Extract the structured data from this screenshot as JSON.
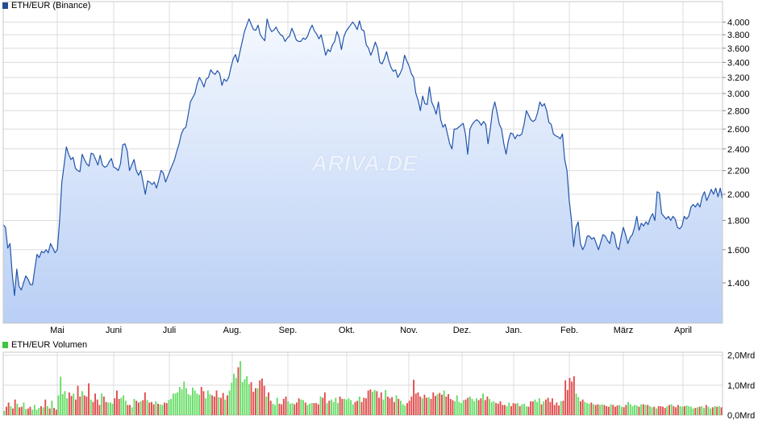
{
  "legend_price": "ETH/EUR (Binance)",
  "legend_volume": "ETH/EUR Volumen",
  "watermark": "ARIVA.DE",
  "colors": {
    "line": "#2255aa",
    "fill_top": "#f4f8fe",
    "fill_bottom": "#b9cff5",
    "grid": "#dcdcdc",
    "price_swatch": "#254d94",
    "volume_swatch": "#3ec63e",
    "vol_up": "#66dd66",
    "vol_down": "#e04c4c"
  },
  "chart_data": [
    {
      "type": "line",
      "title": "ETH/EUR (Binance)",
      "x_ticks": [
        "Mai",
        "Juni",
        "Juli",
        "Aug.",
        "Sep.",
        "Okt.",
        "Nov.",
        "Dez.",
        "Jan.",
        "Feb.",
        "März",
        "April"
      ],
      "y_ticks": [
        "1.400",
        "1.600",
        "1.800",
        "2.000",
        "2.200",
        "2.400",
        "2.600",
        "2.800",
        "3.000",
        "3.200",
        "3.400",
        "3.600",
        "3.800",
        "4.000"
      ],
      "y_scale": "log",
      "ylim": [
        1190,
        4150
      ],
      "series": [
        {
          "name": "ETH/EUR",
          "values": [
            1770,
            1750,
            1610,
            1640,
            1450,
            1330,
            1480,
            1380,
            1360,
            1400,
            1440,
            1420,
            1390,
            1390,
            1480,
            1570,
            1550,
            1590,
            1580,
            1600,
            1580,
            1640,
            1610,
            1580,
            1600,
            1800,
            2100,
            2250,
            2420,
            2350,
            2300,
            2320,
            2220,
            2200,
            2190,
            2350,
            2300,
            2260,
            2240,
            2360,
            2350,
            2300,
            2250,
            2340,
            2250,
            2230,
            2240,
            2280,
            2310,
            2230,
            2220,
            2200,
            2260,
            2440,
            2450,
            2380,
            2200,
            2250,
            2300,
            2200,
            2160,
            2200,
            2100,
            2000,
            2110,
            2100,
            2080,
            2100,
            2050,
            2120,
            2200,
            2180,
            2100,
            2150,
            2200,
            2250,
            2300,
            2380,
            2450,
            2550,
            2600,
            2620,
            2750,
            2900,
            2950,
            3000,
            3120,
            3200,
            3150,
            3080,
            3180,
            3200,
            3300,
            3260,
            3240,
            3290,
            3250,
            3100,
            3180,
            3150,
            3200,
            3330,
            3450,
            3510,
            3400,
            3550,
            3700,
            3850,
            3950,
            4050,
            3960,
            3880,
            3870,
            3950,
            3800,
            3750,
            3710,
            4050,
            3920,
            3850,
            3870,
            3920,
            3850,
            3800,
            3780,
            3700,
            3750,
            3780,
            3900,
            3820,
            3720,
            3700,
            3700,
            3750,
            3730,
            3780,
            3880,
            3950,
            3860,
            3810,
            3740,
            3800,
            3650,
            3500,
            3580,
            3550,
            3650,
            3700,
            3850,
            3760,
            3580,
            3760,
            3850,
            3900,
            3950,
            4000,
            3950,
            3880,
            4020,
            3880,
            3860,
            3650,
            3600,
            3500,
            3580,
            3690,
            3600,
            3400,
            3380,
            3450,
            3550,
            3420,
            3330,
            3280,
            3300,
            3200,
            3250,
            3320,
            3500,
            3420,
            3350,
            3250,
            3200,
            3000,
            2920,
            2800,
            2970,
            2880,
            2870,
            3080,
            2900,
            2840,
            2760,
            2900,
            2700,
            2620,
            2650,
            2550,
            2450,
            2400,
            2600,
            2600,
            2620,
            2640,
            2660,
            2550,
            2350,
            2600,
            2650,
            2680,
            2700,
            2680,
            2640,
            2680,
            2650,
            2450,
            2600,
            2800,
            2900,
            2780,
            2650,
            2600,
            2450,
            2350,
            2480,
            2560,
            2550,
            2500,
            2540,
            2530,
            2550,
            2650,
            2800,
            2750,
            2700,
            2680,
            2700,
            2780,
            2900,
            2850,
            2880,
            2800,
            2670,
            2650,
            2550,
            2530,
            2520,
            2500,
            2550,
            2300,
            2200,
            1950,
            1800,
            1620,
            1750,
            1790,
            1640,
            1600,
            1630,
            1690,
            1690,
            1670,
            1680,
            1640,
            1600,
            1650,
            1700,
            1690,
            1660,
            1640,
            1720,
            1700,
            1620,
            1600,
            1680,
            1750,
            1700,
            1640,
            1680,
            1700,
            1750,
            1830,
            1730,
            1780,
            1760,
            1790,
            1770,
            1820,
            1850,
            1800,
            2020,
            2010,
            1850,
            1830,
            1810,
            1830,
            1800,
            1830,
            1810,
            1750,
            1740,
            1760,
            1830,
            1810,
            1830,
            1900,
            1920,
            1900,
            1930,
            1900,
            1980,
            2020,
            1950,
            1990,
            2040,
            2000,
            2050,
            1980,
            2050,
            1960
          ]
        }
      ]
    },
    {
      "type": "bar",
      "title": "ETH/EUR Volumen",
      "y_ticks": [
        "0,0Mrd",
        "1,0Mrd",
        "2,0Mrd"
      ],
      "ylim": [
        0,
        2.1
      ],
      "unit": "Mrd",
      "series": [
        {
          "name": "Volumen",
          "values": [
            0.14,
            0.28,
            0.42,
            0.3,
            0.22,
            0.52,
            0.38,
            0.26,
            0.28,
            0.42,
            0.2,
            0.22,
            0.28,
            0.18,
            0.34,
            0.18,
            0.24,
            0.3,
            0.26,
            0.52,
            0.3,
            0.22,
            0.48,
            0.24,
            0.18,
            0.66,
            1.28,
            0.7,
            0.8,
            0.56,
            0.76,
            0.64,
            0.72,
            0.52,
            0.98,
            0.62,
            0.8,
            0.66,
            0.62,
            1.06,
            0.52,
            0.44,
            0.72,
            0.52,
            0.34,
            0.72,
            0.62,
            0.44,
            0.42,
            0.42,
            0.38,
            0.56,
            0.82,
            0.54,
            0.58,
            0.66,
            0.48,
            0.34,
            0.34,
            0.26,
            0.54,
            0.48,
            0.42,
            0.46,
            0.5,
            0.76,
            0.5,
            0.42,
            0.44,
            0.36,
            0.46,
            0.38,
            0.36,
            0.34,
            0.42,
            0.4,
            0.5,
            0.54,
            0.72,
            0.72,
            0.76,
            0.94,
            0.86,
            1.12,
            0.9,
            0.7,
            0.66,
            0.92,
            0.82,
            0.72,
            0.68,
            0.94,
            0.8,
            0.56,
            0.82,
            0.7,
            0.66,
            0.62,
            0.82,
            0.6,
            0.58,
            0.74,
            0.52,
            0.66,
            0.82,
            1.08,
            1.38,
            1.24,
            1.6,
            1.8,
            1.1,
            1.2,
            1.3,
            1.04,
            1.1,
            0.78,
            0.9,
            0.9,
            1.16,
            1.22,
            0.98,
            0.62,
            0.76,
            0.48,
            0.38,
            0.34,
            0.58,
            0.38,
            0.36,
            0.54,
            0.62,
            0.46,
            0.38,
            0.4,
            0.36,
            0.42,
            0.56,
            0.52,
            0.5,
            0.42,
            0.34,
            0.38,
            0.4,
            0.4,
            0.4,
            0.36,
            0.62,
            0.58,
            0.76,
            0.4,
            0.48,
            0.52,
            0.44,
            0.58,
            0.4,
            0.62,
            0.54,
            0.54,
            0.52,
            0.56,
            0.5,
            0.36,
            0.44,
            0.48,
            0.62,
            0.44,
            0.58,
            0.56,
            0.82,
            0.86,
            0.78,
            0.84,
            0.8,
            0.58,
            0.76,
            0.52,
            0.84,
            0.62,
            0.56,
            0.6,
            0.44,
            0.66,
            0.54,
            0.48,
            0.36,
            0.32,
            0.4,
            0.48,
            0.62,
            1.18,
            0.72,
            0.76,
            0.62,
            0.56,
            0.68,
            0.58,
            0.6,
            0.54,
            0.76,
            0.64,
            0.7,
            0.74,
            0.68,
            0.82,
            0.62,
            0.7,
            0.54,
            0.5,
            0.46,
            0.66,
            0.44,
            0.4,
            0.5,
            0.52,
            0.58,
            0.62,
            0.54,
            0.46,
            0.56,
            0.5,
            0.56,
            0.72,
            0.5,
            0.62,
            0.54,
            0.44,
            0.46,
            0.4,
            0.38,
            0.46,
            0.34,
            0.34,
            0.3,
            0.42,
            0.3,
            0.4,
            0.38,
            0.4,
            0.3,
            0.36,
            0.38,
            0.3,
            0.28,
            0.46,
            0.46,
            0.52,
            0.44,
            0.56,
            0.36,
            0.46,
            0.52,
            0.58,
            0.44,
            0.56,
            0.34,
            0.42,
            0.32,
            0.46,
            0.48,
            1.16,
            0.84,
            1.24,
            1.12,
            1.3,
            0.72,
            0.6,
            0.46,
            0.52,
            0.44,
            0.4,
            0.38,
            0.42,
            0.36,
            0.34,
            0.36,
            0.34,
            0.36,
            0.34,
            0.3,
            0.28,
            0.36,
            0.34,
            0.28,
            0.32,
            0.34,
            0.28,
            0.26,
            0.34,
            0.44,
            0.36,
            0.3,
            0.34,
            0.32,
            0.28,
            0.36,
            0.36,
            0.34,
            0.34,
            0.3,
            0.26,
            0.28,
            0.22,
            0.3,
            0.3,
            0.28,
            0.24,
            0.3,
            0.34,
            0.36,
            0.3,
            0.26,
            0.34,
            0.3,
            0.28,
            0.3,
            0.32,
            0.3,
            0.28,
            0.22,
            0.24,
            0.26,
            0.28,
            0.3,
            0.24,
            0.34,
            0.28,
            0.22,
            0.26,
            0.3,
            0.28,
            0.3,
            0.26
          ]
        }
      ]
    }
  ]
}
